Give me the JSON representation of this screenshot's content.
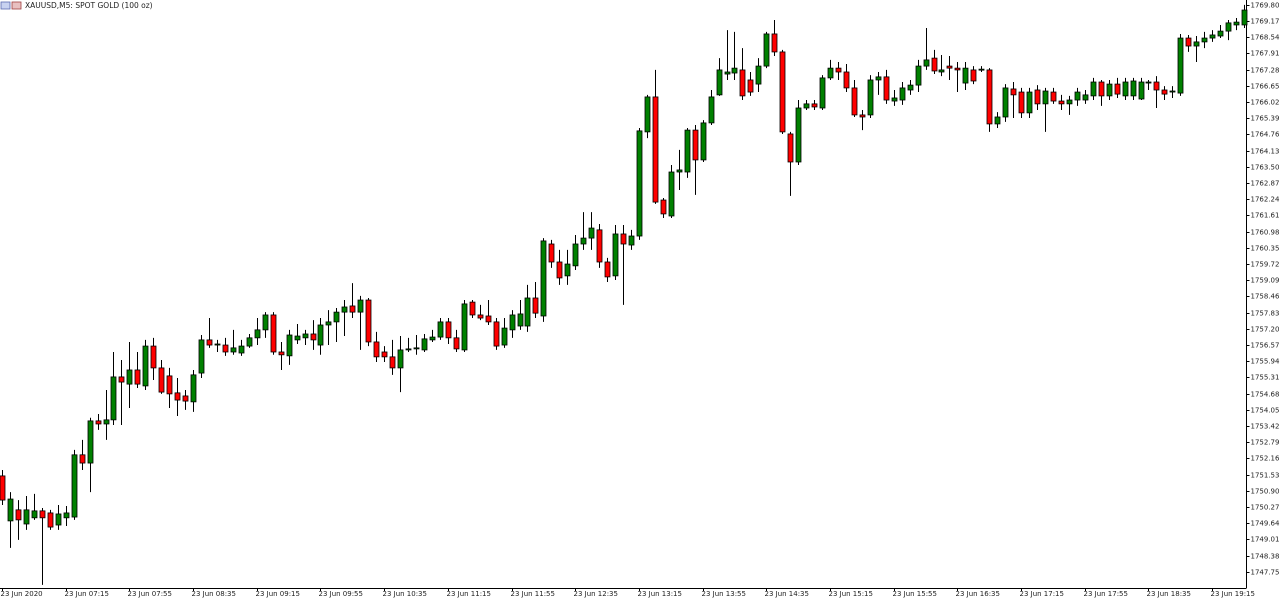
{
  "chart_data": {
    "type": "candlestick",
    "title": "XAUUSD,M5: SPOT GOLD (100 oz)",
    "up_color": "#008000",
    "down_color": "#ff0000",
    "wick_color": "#000000",
    "grid": false,
    "categories": [
      "23 Jun 2020",
      null,
      null,
      null,
      null,
      null,
      null,
      null,
      "23 Jun 07:15",
      null,
      null,
      null,
      null,
      null,
      null,
      null,
      "23 Jun 07:55",
      null,
      null,
      null,
      null,
      null,
      null,
      null,
      "23 Jun 08:35",
      null,
      null,
      null,
      null,
      null,
      null,
      null,
      "23 Jun 09:15",
      null,
      null,
      null,
      null,
      null,
      null,
      null,
      "23 Jun 09:55",
      null,
      null,
      null,
      null,
      null,
      null,
      null,
      "23 Jun 10:35",
      null,
      null,
      null,
      null,
      null,
      null,
      null,
      "23 Jun 11:15",
      null,
      null,
      null,
      null,
      null,
      null,
      null,
      "23 Jun 11:55",
      null,
      null,
      null,
      null,
      null,
      null,
      null,
      "23 Jun 12:35",
      null,
      null,
      null,
      null,
      null,
      null,
      null,
      "23 Jun 13:15",
      null,
      null,
      null,
      null,
      null,
      null,
      null,
      "23 Jun 13:55",
      null,
      null,
      null,
      null,
      null,
      null,
      null,
      "23 Jun 14:35",
      null,
      null,
      null,
      null,
      null,
      null,
      null,
      "23 Jun 15:15",
      null,
      null,
      null,
      null,
      null,
      null,
      null,
      "23 Jun 15:55",
      null,
      null,
      null,
      null,
      null,
      null,
      null,
      "23 Jun 16:35",
      null,
      null,
      null,
      null,
      null,
      null,
      null,
      "23 Jun 17:15",
      null,
      null,
      null,
      null,
      null,
      null,
      null,
      "23 Jun 17:55",
      null,
      null,
      null,
      null,
      null,
      null,
      null,
      "23 Jun 18:35",
      null,
      null,
      null,
      null,
      null,
      null,
      null,
      "23 Jun 19:15",
      null,
      null,
      null,
      null
    ],
    "open": [
      1751.48,
      1749.73,
      1750.16,
      1749.61,
      1749.85,
      1750.12,
      1750.04,
      1749.57,
      1749.85,
      1749.88,
      1752.3,
      1751.98,
      1753.62,
      1753.5,
      1753.66,
      1755.33,
      1755.05,
      1755.6,
      1754.98,
      1756.53,
      1755.68,
      1755.37,
      1754.71,
      1754.59,
      1754.36,
      1755.48,
      1756.77,
      1756.57,
      1756.57,
      1756.3,
      1756.26,
      1756.53,
      1756.85,
      1757.16,
      1757.74,
      1756.3,
      1756.15,
      1756.77,
      1756.85,
      1757.0,
      1756.57,
      1757.35,
      1757.47,
      1757.85,
      1758.09,
      1757.85,
      1758.32,
      1756.69,
      1756.3,
      1756.11,
      1755.68,
      1756.38,
      1756.42,
      1756.38,
      1756.77,
      1756.88,
      1757.47,
      1756.85,
      1756.38,
      1758.24,
      1757.74,
      1757.7,
      1757.47,
      1756.57,
      1757.16,
      1757.31,
      1757.31,
      1758.4,
      1757.7,
      1760.5,
      1759.8,
      1759.26,
      1759.65,
      1760.5,
      1760.73,
      1761.05,
      1759.8,
      1759.26,
      1760.89,
      1760.46,
      1760.81,
      1764.86,
      1766.22,
      1762.21,
      1761.59,
      1763.3,
      1763.3,
      1764.93,
      1763.77,
      1765.21,
      1766.3,
      1767.11,
      1767.15,
      1767.27,
      1766.88,
      1766.72,
      1767.42,
      1768.67,
      1767.97,
      1764.78,
      1763.69,
      1765.79,
      1765.95,
      1765.79,
      1766.96,
      1767.34,
      1767.19,
      1766.57,
      1765.52,
      1765.52,
      1766.88,
      1767.0,
      1766.06,
      1766.1,
      1766.49,
      1766.68,
      1767.42,
      1767.73,
      1767.19,
      1767.42,
      1767.34,
      1766.76,
      1767.27,
      1767.27,
      1767.27,
      1765.17,
      1765.44,
      1766.53,
      1766.41,
      1765.6,
      1766.49,
      1765.95,
      1766.41,
      1766.06,
      1765.95,
      1766.1,
      1766.1,
      1766.26,
      1766.8,
      1766.26,
      1766.72,
      1766.26,
      1766.26,
      1766.14,
      1766.76,
      1766.8,
      1766.49,
      1766.41,
      1766.37,
      1768.51,
      1768.2,
      1768.36,
      1768.51,
      1768.59,
      1768.78,
      1769.02,
      1769.02
    ],
    "high": [
      1751.71,
      1750.85,
      1750.54,
      1750.7,
      1750.78,
      1750.23,
      1750.16,
      1750.35,
      1750.31,
      1752.49,
      1752.88,
      1753.74,
      1753.89,
      1754.82,
      1756.3,
      1755.99,
      1756.69,
      1756.3,
      1756.77,
      1756.85,
      1755.99,
      1755.68,
      1755.29,
      1754.82,
      1755.6,
      1756.96,
      1757.62,
      1756.77,
      1756.85,
      1757.16,
      1756.77,
      1757.0,
      1757.62,
      1757.85,
      1757.85,
      1756.69,
      1757.16,
      1757.39,
      1757.16,
      1757.54,
      1757.62,
      1757.93,
      1758.01,
      1758.32,
      1758.98,
      1758.48,
      1758.4,
      1757.08,
      1756.53,
      1756.77,
      1756.92,
      1756.85,
      1756.96,
      1757.0,
      1757.16,
      1757.62,
      1757.62,
      1757.16,
      1758.32,
      1758.32,
      1758.13,
      1758.32,
      1757.62,
      1757.62,
      1757.93,
      1758.32,
      1758.91,
      1759.02,
      1760.73,
      1760.66,
      1760.27,
      1760.27,
      1760.85,
      1761.74,
      1761.74,
      1761.28,
      1759.96,
      1761.24,
      1761.24,
      1761.05,
      1765.01,
      1766.3,
      1767.27,
      1762.29,
      1763.57,
      1764.16,
      1765.01,
      1765.13,
      1765.32,
      1766.49,
      1767.73,
      1768.82,
      1768.75,
      1768.12,
      1767.19,
      1767.73,
      1768.75,
      1769.21,
      1768.05,
      1764.86,
      1766.1,
      1766.1,
      1766.1,
      1767.07,
      1767.66,
      1767.58,
      1767.5,
      1766.88,
      1765.71,
      1767.07,
      1767.19,
      1767.27,
      1766.49,
      1766.8,
      1766.88,
      1767.66,
      1768.9,
      1768.05,
      1767.85,
      1767.81,
      1767.58,
      1767.58,
      1767.42,
      1767.42,
      1767.34,
      1765.63,
      1766.72,
      1766.8,
      1766.57,
      1766.57,
      1766.68,
      1766.57,
      1766.57,
      1766.3,
      1766.26,
      1766.57,
      1766.49,
      1766.96,
      1766.88,
      1766.88,
      1766.96,
      1766.96,
      1766.96,
      1766.96,
      1766.88,
      1767.03,
      1766.64,
      1766.64,
      1768.67,
      1768.63,
      1768.59,
      1768.75,
      1768.82,
      1769.02,
      1769.21,
      1769.29,
      1769.8
    ],
    "low": [
      1750.35,
      1748.68,
      1748.99,
      1749.38,
      1749.77,
      1747.24,
      1749.38,
      1749.38,
      1749.53,
      1749.77,
      1751.71,
      1750.85,
      1753.27,
      1752.88,
      1753.46,
      1753.46,
      1754.12,
      1754.9,
      1754.82,
      1755.21,
      1754.67,
      1754.12,
      1753.81,
      1754.05,
      1753.97,
      1755.29,
      1756.46,
      1756.3,
      1756.15,
      1756.19,
      1756.15,
      1756.46,
      1756.57,
      1756.85,
      1756.19,
      1755.6,
      1755.8,
      1756.61,
      1756.57,
      1756.38,
      1756.19,
      1756.57,
      1756.69,
      1756.92,
      1757.62,
      1756.38,
      1756.53,
      1755.91,
      1755.91,
      1755.41,
      1754.74,
      1756.3,
      1756.19,
      1756.3,
      1756.69,
      1756.77,
      1756.61,
      1756.3,
      1756.3,
      1757.62,
      1757.54,
      1757.35,
      1756.38,
      1756.46,
      1756.85,
      1757.16,
      1757.08,
      1757.62,
      1757.47,
      1759.57,
      1758.91,
      1758.91,
      1759.49,
      1760.27,
      1760.27,
      1759.57,
      1759.02,
      1759.1,
      1758.13,
      1760.27,
      1760.66,
      1764.62,
      1762.06,
      1761.51,
      1761.51,
      1762.6,
      1763.07,
      1762.41,
      1763.69,
      1765.13,
      1766.26,
      1766.88,
      1766.88,
      1766.1,
      1766.26,
      1766.41,
      1767.34,
      1767.81,
      1764.78,
      1762.37,
      1763.57,
      1765.71,
      1765.71,
      1765.71,
      1766.88,
      1766.88,
      1766.41,
      1765.44,
      1764.93,
      1765.4,
      1766.3,
      1765.95,
      1765.87,
      1765.91,
      1766.3,
      1766.41,
      1767.27,
      1767.11,
      1767.03,
      1766.88,
      1766.41,
      1766.49,
      1766.72,
      1767.19,
      1764.86,
      1765.01,
      1765.25,
      1765.4,
      1765.4,
      1765.4,
      1765.71,
      1764.86,
      1765.95,
      1765.71,
      1765.52,
      1765.87,
      1765.95,
      1766.1,
      1765.87,
      1766.1,
      1766.18,
      1766.1,
      1766.1,
      1766.1,
      1766.49,
      1765.79,
      1766.1,
      1766.18,
      1766.26,
      1767.97,
      1767.58,
      1768.12,
      1768.36,
      1768.51,
      1768.43,
      1768.82,
      1768.9
    ],
    "close": [
      1750.54,
      1750.58,
      1749.77,
      1750.16,
      1750.12,
      1749.85,
      1749.49,
      1750.0,
      1750.04,
      1752.3,
      1751.98,
      1753.62,
      1753.5,
      1753.66,
      1755.33,
      1755.13,
      1755.6,
      1755.05,
      1756.53,
      1755.68,
      1754.74,
      1754.67,
      1754.43,
      1754.39,
      1755.41,
      1756.77,
      1756.57,
      1756.61,
      1756.3,
      1756.46,
      1756.53,
      1756.85,
      1757.16,
      1757.74,
      1756.3,
      1756.19,
      1756.96,
      1756.92,
      1757.0,
      1756.77,
      1757.35,
      1757.47,
      1757.85,
      1758.05,
      1757.85,
      1758.32,
      1756.69,
      1756.11,
      1756.11,
      1755.68,
      1756.38,
      1756.42,
      1756.46,
      1756.81,
      1756.88,
      1757.47,
      1756.85,
      1756.42,
      1758.17,
      1757.74,
      1757.62,
      1757.47,
      1756.53,
      1757.23,
      1757.74,
      1757.78,
      1758.4,
      1757.81,
      1760.62,
      1759.8,
      1759.18,
      1759.72,
      1760.5,
      1760.73,
      1761.12,
      1759.8,
      1759.22,
      1760.89,
      1760.5,
      1760.81,
      1764.9,
      1766.22,
      1762.13,
      1761.67,
      1763.3,
      1763.38,
      1764.93,
      1763.77,
      1765.21,
      1766.22,
      1767.27,
      1767.19,
      1767.34,
      1766.26,
      1766.41,
      1767.42,
      1768.67,
      1767.97,
      1764.86,
      1763.69,
      1765.79,
      1765.95,
      1765.83,
      1766.96,
      1767.34,
      1767.19,
      1766.57,
      1765.52,
      1765.44,
      1766.88,
      1767.0,
      1766.1,
      1766.18,
      1766.57,
      1766.68,
      1767.42,
      1767.66,
      1767.23,
      1767.27,
      1767.34,
      1767.27,
      1767.34,
      1766.84,
      1767.3,
      1765.17,
      1765.44,
      1766.57,
      1766.3,
      1765.6,
      1766.41,
      1765.95,
      1766.45,
      1766.06,
      1765.95,
      1766.1,
      1766.41,
      1766.3,
      1766.8,
      1766.26,
      1766.72,
      1766.33,
      1766.8,
      1766.84,
      1766.8,
      1766.8,
      1766.49,
      1766.33,
      1766.45,
      1768.51,
      1768.2,
      1768.36,
      1768.51,
      1768.63,
      1768.78,
      1769.1,
      1769.13,
      1769.6
    ],
    "ylim": [
      1747.12,
      1769.99
    ],
    "yticks": [
      {
        "value": 1769.8,
        "label": "1769.80"
      },
      1769.17,
      1768.54,
      1767.91,
      1767.28,
      1766.65,
      1766.02,
      1765.39,
      1764.76,
      1764.13,
      {
        "value": 1763.5,
        "label": "1763.50"
      },
      1762.87,
      1762.24,
      1761.61,
      1760.98,
      1760.35,
      1759.72,
      1759.09,
      1758.46,
      1757.83,
      {
        "value": 1757.2,
        "label": "1757.20"
      },
      1756.57,
      1755.94,
      1755.31,
      1754.68,
      1754.05,
      1753.42,
      1752.79,
      1752.16,
      1751.53,
      {
        "value": 1750.9,
        "label": "1750.90"
      },
      1750.27,
      1749.64,
      1749.01,
      1748.38,
      1747.75
    ]
  }
}
